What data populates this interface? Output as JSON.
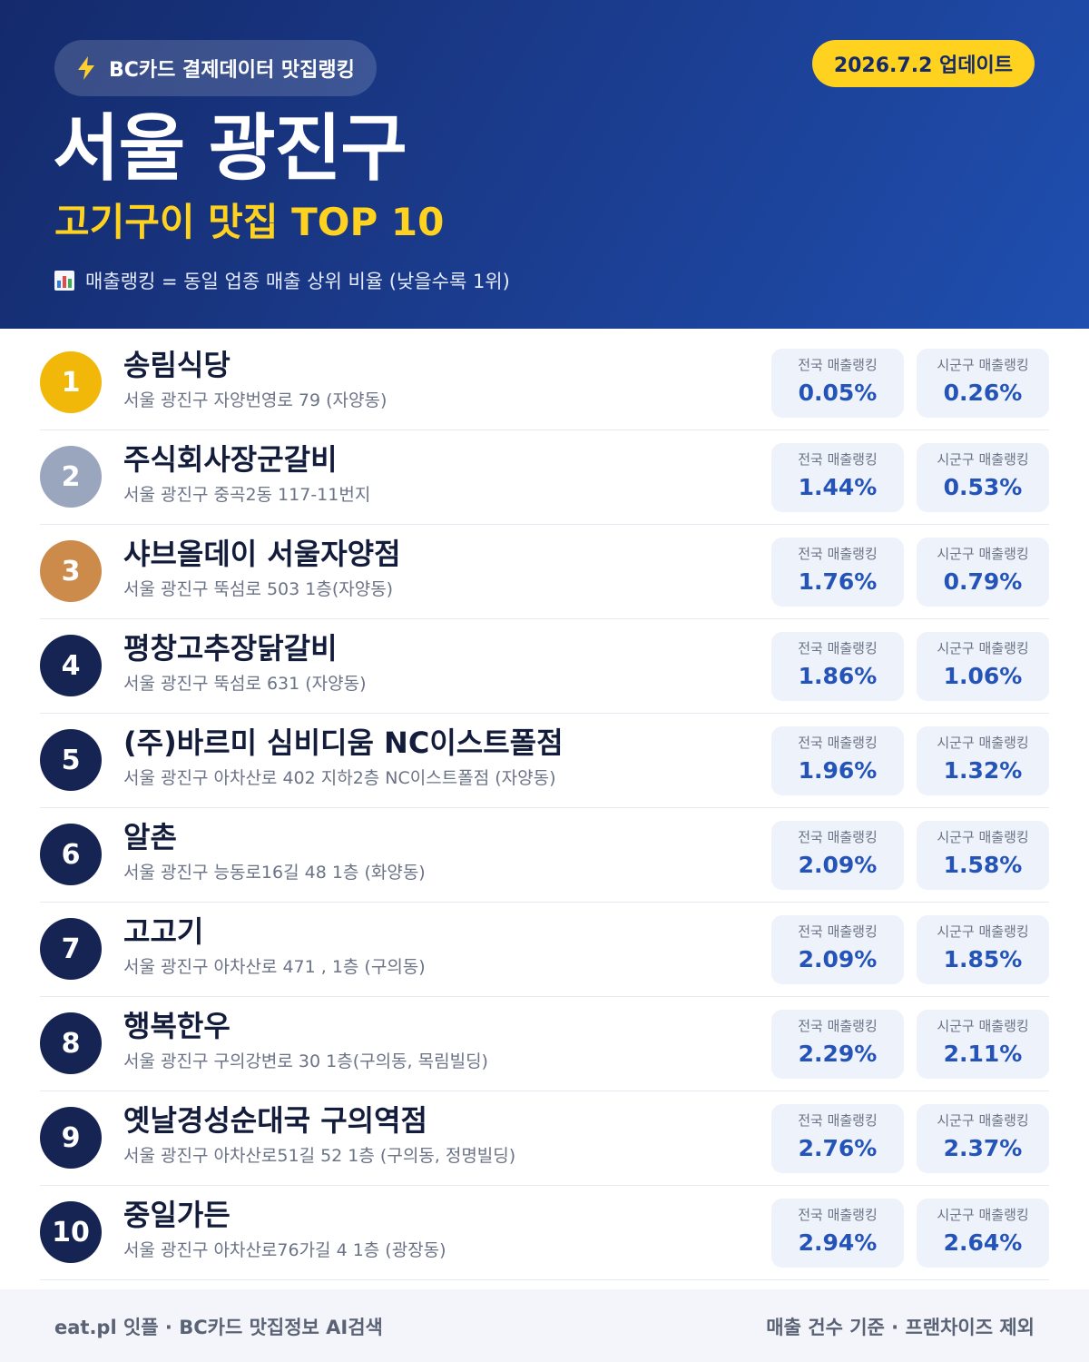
{
  "header": {
    "brand_label": "BC카드 결제데이터 맛집랭킹",
    "brand_icon": "lightning-bolt-icon",
    "update_label": "2026.7.2 업데이트",
    "title": "서울 광진구",
    "subtitle": "고기구이 맛집 TOP 10",
    "note_icon": "bar-chart-icon",
    "note": "매출랭킹 = 동일 업종 매출 상위 비율 (낮을수록 1위)"
  },
  "stat_labels": {
    "national": "전국 매출랭킹",
    "district": "시군구 매출랭킹"
  },
  "restaurants": [
    {
      "rank": "1",
      "name": "송림식당",
      "address": "서울 광진구 자양번영로 79 (자양동)",
      "national": "0.05%",
      "district": "0.26%"
    },
    {
      "rank": "2",
      "name": "주식회사장군갈비",
      "address": "서울 광진구 중곡2동 117-11번지",
      "national": "1.44%",
      "district": "0.53%"
    },
    {
      "rank": "3",
      "name": "샤브올데이 서울자양점",
      "address": "서울 광진구 뚝섬로 503 1층(자양동)",
      "national": "1.76%",
      "district": "0.79%"
    },
    {
      "rank": "4",
      "name": "평창고추장닭갈비",
      "address": "서울 광진구 뚝섬로 631 (자양동)",
      "national": "1.86%",
      "district": "1.06%"
    },
    {
      "rank": "5",
      "name": "(주)바르미 심비디움 NC이스트폴점",
      "address": "서울 광진구 아차산로 402 지하2층 NC이스트폴점 (자양동)",
      "national": "1.96%",
      "district": "1.32%"
    },
    {
      "rank": "6",
      "name": "알촌",
      "address": "서울 광진구 능동로16길 48 1층 (화양동)",
      "national": "2.09%",
      "district": "1.58%"
    },
    {
      "rank": "7",
      "name": "고고기",
      "address": "서울 광진구 아차산로 471 , 1층 (구의동)",
      "national": "2.09%",
      "district": "1.85%"
    },
    {
      "rank": "8",
      "name": "행복한우",
      "address": "서울 광진구 구의강변로 30 1층(구의동, 목림빌딩)",
      "national": "2.29%",
      "district": "2.11%"
    },
    {
      "rank": "9",
      "name": "옛날경성순대국 구의역점",
      "address": "서울 광진구 아차산로51길 52 1층 (구의동, 정명빌딩)",
      "national": "2.76%",
      "district": "2.37%"
    },
    {
      "rank": "10",
      "name": "중일가든",
      "address": "서울 광진구 아차산로76가길 4 1층 (광장동)",
      "national": "2.94%",
      "district": "2.64%"
    }
  ],
  "footer": {
    "left": "eat.pl 잇플 · BC카드 맛집정보 AI검색",
    "right": "매출 건수 기준 · 프랜차이즈 제외"
  },
  "colors": {
    "header_dark": "#142a6b",
    "header_light": "#1f4fb0",
    "accent_yellow": "#ffd21f",
    "rank_gold": "#f1b80a",
    "rank_silver": "#9aa6bd",
    "rank_bronze": "#cc8b4b",
    "rank_default": "#152452",
    "value_blue": "#2554b8"
  }
}
